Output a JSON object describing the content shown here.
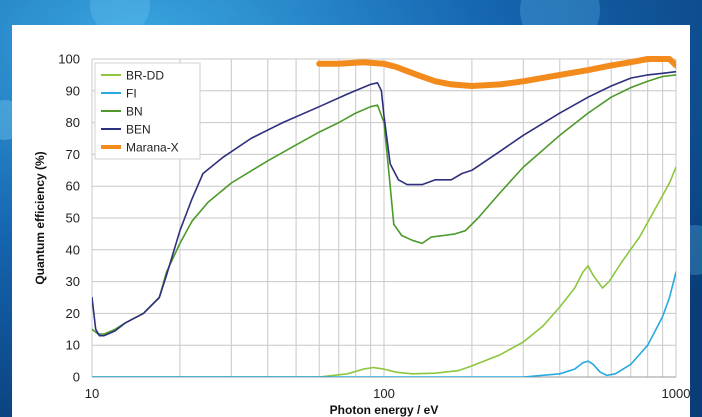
{
  "chart_data": {
    "type": "line",
    "title": "",
    "xlabel": "Photon energy / eV",
    "ylabel": "Quantum efficiency (%)",
    "x_scale": "log",
    "xlim": [
      10,
      1000
    ],
    "ylim": [
      0,
      100
    ],
    "x_ticks": [
      10,
      100,
      1000
    ],
    "x_tick_labels": [
      "10",
      "100",
      "1000"
    ],
    "y_ticks": [
      0,
      10,
      20,
      30,
      40,
      50,
      60,
      70,
      80,
      90,
      100
    ],
    "y_tick_labels": [
      "0",
      "10",
      "20",
      "30",
      "40",
      "50",
      "60",
      "70",
      "80",
      "90",
      "100"
    ],
    "grid": true,
    "legend_position": "top-left",
    "series": [
      {
        "name": "BR-DD",
        "color": "#8dc63f",
        "width": 1.6,
        "points": [
          [
            10,
            0
          ],
          [
            30,
            0
          ],
          [
            60,
            0
          ],
          [
            75,
            1
          ],
          [
            85,
            2.5
          ],
          [
            92,
            3
          ],
          [
            100,
            2.5
          ],
          [
            110,
            1.5
          ],
          [
            125,
            1
          ],
          [
            150,
            1.2
          ],
          [
            180,
            2
          ],
          [
            200,
            3.5
          ],
          [
            250,
            7
          ],
          [
            300,
            11
          ],
          [
            350,
            16
          ],
          [
            400,
            22
          ],
          [
            450,
            28
          ],
          [
            480,
            33
          ],
          [
            500,
            35
          ],
          [
            520,
            32
          ],
          [
            560,
            28
          ],
          [
            590,
            30
          ],
          [
            650,
            36
          ],
          [
            750,
            44
          ],
          [
            850,
            53
          ],
          [
            950,
            61
          ],
          [
            1000,
            66
          ]
        ]
      },
      {
        "name": "FI",
        "color": "#27a9e1",
        "width": 1.6,
        "points": [
          [
            10,
            0
          ],
          [
            100,
            0
          ],
          [
            200,
            0
          ],
          [
            300,
            0
          ],
          [
            400,
            1
          ],
          [
            450,
            2.5
          ],
          [
            480,
            4.5
          ],
          [
            500,
            5
          ],
          [
            520,
            4
          ],
          [
            550,
            1.5
          ],
          [
            580,
            0.5
          ],
          [
            620,
            1
          ],
          [
            700,
            4
          ],
          [
            800,
            10
          ],
          [
            900,
            19
          ],
          [
            950,
            25
          ],
          [
            1000,
            33
          ]
        ]
      },
      {
        "name": "BN",
        "color": "#4c9a2a",
        "width": 1.6,
        "points": [
          [
            10,
            15
          ],
          [
            10.5,
            13.5
          ],
          [
            11,
            13.5
          ],
          [
            12,
            15
          ],
          [
            13,
            17
          ],
          [
            15,
            20
          ],
          [
            17,
            25
          ],
          [
            18,
            33
          ],
          [
            20,
            42
          ],
          [
            22,
            49
          ],
          [
            25,
            55
          ],
          [
            30,
            61
          ],
          [
            40,
            68
          ],
          [
            50,
            73
          ],
          [
            60,
            77
          ],
          [
            70,
            80
          ],
          [
            80,
            83
          ],
          [
            90,
            85
          ],
          [
            95,
            85.5
          ],
          [
            100,
            80
          ],
          [
            105,
            60
          ],
          [
            108,
            48
          ],
          [
            115,
            44.5
          ],
          [
            125,
            43
          ],
          [
            135,
            42
          ],
          [
            145,
            44
          ],
          [
            160,
            44.5
          ],
          [
            175,
            45
          ],
          [
            190,
            46
          ],
          [
            210,
            50
          ],
          [
            250,
            58
          ],
          [
            300,
            66
          ],
          [
            400,
            76
          ],
          [
            500,
            83
          ],
          [
            600,
            88
          ],
          [
            700,
            91
          ],
          [
            800,
            93
          ],
          [
            900,
            94.5
          ],
          [
            1000,
            95
          ]
        ]
      },
      {
        "name": "BEN",
        "color": "#2e2f7e",
        "width": 1.6,
        "points": [
          [
            10,
            25
          ],
          [
            10.3,
            15
          ],
          [
            10.6,
            13
          ],
          [
            11,
            13
          ],
          [
            12,
            14.5
          ],
          [
            13,
            17
          ],
          [
            15,
            20
          ],
          [
            17,
            25
          ],
          [
            18,
            32
          ],
          [
            20,
            46
          ],
          [
            22,
            56
          ],
          [
            24,
            64
          ],
          [
            28,
            69
          ],
          [
            35,
            75
          ],
          [
            45,
            80
          ],
          [
            60,
            85
          ],
          [
            75,
            89
          ],
          [
            90,
            92
          ],
          [
            95,
            92.5
          ],
          [
            98,
            90
          ],
          [
            100,
            82
          ],
          [
            105,
            67
          ],
          [
            112,
            62
          ],
          [
            120,
            60.5
          ],
          [
            135,
            60.5
          ],
          [
            150,
            62
          ],
          [
            170,
            62
          ],
          [
            185,
            64
          ],
          [
            200,
            65
          ],
          [
            250,
            71
          ],
          [
            300,
            76
          ],
          [
            400,
            83
          ],
          [
            500,
            88
          ],
          [
            600,
            91.5
          ],
          [
            700,
            94
          ],
          [
            800,
            95
          ],
          [
            900,
            95.5
          ],
          [
            1000,
            96
          ]
        ]
      },
      {
        "name": "Marana-X",
        "color": "#f28a1c",
        "width": 6,
        "points": [
          [
            60,
            98.5
          ],
          [
            70,
            98.5
          ],
          [
            85,
            99
          ],
          [
            100,
            98.5
          ],
          [
            110,
            97.5
          ],
          [
            130,
            95
          ],
          [
            150,
            93
          ],
          [
            170,
            92
          ],
          [
            200,
            91.5
          ],
          [
            250,
            92
          ],
          [
            300,
            93
          ],
          [
            400,
            95
          ],
          [
            500,
            96.5
          ],
          [
            600,
            98
          ],
          [
            700,
            99
          ],
          [
            800,
            100
          ],
          [
            950,
            100
          ],
          [
            1000,
            98
          ]
        ]
      }
    ]
  }
}
